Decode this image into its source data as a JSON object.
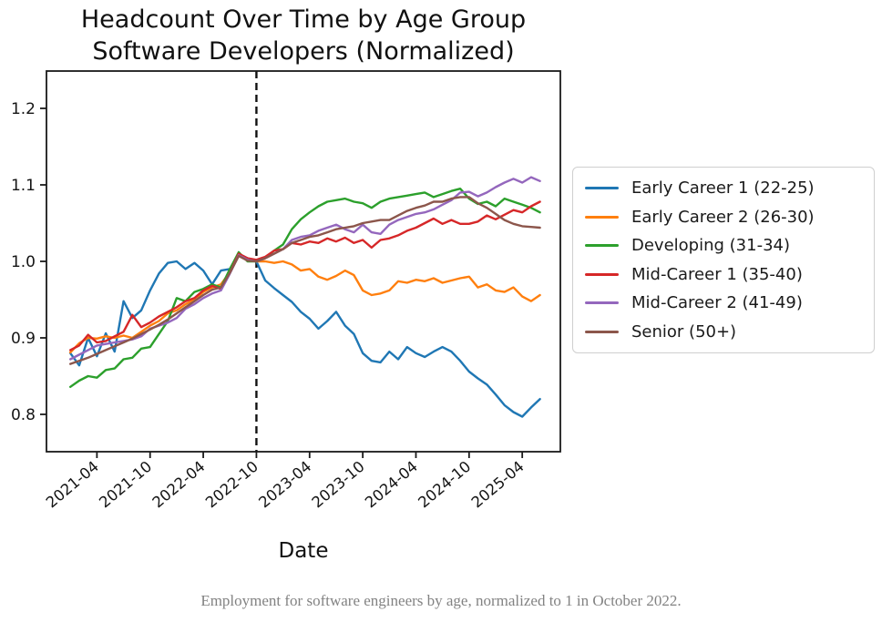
{
  "caption": "Employment for software engineers by age, normalized to 1 in October 2022.",
  "chart_data": {
    "type": "line",
    "title": "Headcount Over Time by Age Group",
    "subtitle": "Software Developers (Normalized)",
    "xlabel": "Date",
    "ylabel": "",
    "ylim": [
      0.75,
      1.25
    ],
    "yticks": [
      0.8,
      0.9,
      1.0,
      1.1,
      1.2
    ],
    "grid": false,
    "legend_position": "right",
    "vline": "2022-10",
    "vline_style": "dashed-black",
    "xticks": [
      "2021-04",
      "2021-10",
      "2022-04",
      "2022-10",
      "2023-04",
      "2023-10",
      "2024-04",
      "2024-10",
      "2025-04"
    ],
    "x": [
      "2021-01",
      "2021-02",
      "2021-03",
      "2021-04",
      "2021-05",
      "2021-06",
      "2021-07",
      "2021-08",
      "2021-09",
      "2021-10",
      "2021-11",
      "2021-12",
      "2022-01",
      "2022-02",
      "2022-03",
      "2022-04",
      "2022-05",
      "2022-06",
      "2022-07",
      "2022-08",
      "2022-09",
      "2022-10",
      "2022-11",
      "2022-12",
      "2023-01",
      "2023-02",
      "2023-03",
      "2023-04",
      "2023-05",
      "2023-06",
      "2023-07",
      "2023-08",
      "2023-09",
      "2023-10",
      "2023-11",
      "2023-12",
      "2024-01",
      "2024-02",
      "2024-03",
      "2024-04",
      "2024-05",
      "2024-06",
      "2024-07",
      "2024-08",
      "2024-09",
      "2024-10",
      "2024-11",
      "2024-12",
      "2025-01",
      "2025-02",
      "2025-03",
      "2025-04",
      "2025-05",
      "2025-06"
    ],
    "series": [
      {
        "name": "Early Career 1 (22-25)",
        "color": "#1f77b4",
        "values": [
          0.88,
          0.864,
          0.9,
          0.876,
          0.906,
          0.882,
          0.948,
          0.926,
          0.936,
          0.962,
          0.984,
          0.998,
          1.0,
          0.99,
          0.998,
          0.988,
          0.97,
          0.988,
          0.99,
          1.01,
          1.004,
          1.0,
          0.975,
          0.965,
          0.956,
          0.947,
          0.934,
          0.925,
          0.912,
          0.922,
          0.934,
          0.916,
          0.905,
          0.88,
          0.87,
          0.868,
          0.882,
          0.872,
          0.888,
          0.88,
          0.875,
          0.882,
          0.888,
          0.882,
          0.87,
          0.856,
          0.847,
          0.839,
          0.826,
          0.812,
          0.803,
          0.797,
          0.809,
          0.82
        ]
      },
      {
        "name": "Early Career 2 (26-30)",
        "color": "#ff7f0e",
        "values": [
          0.881,
          0.893,
          0.9,
          0.899,
          0.902,
          0.9,
          0.903,
          0.9,
          0.908,
          0.916,
          0.922,
          0.932,
          0.936,
          0.944,
          0.95,
          0.96,
          0.966,
          0.97,
          0.986,
          1.01,
          1.002,
          1.0,
          1.0,
          0.998,
          1.0,
          0.996,
          0.988,
          0.99,
          0.98,
          0.976,
          0.981,
          0.988,
          0.982,
          0.962,
          0.956,
          0.958,
          0.962,
          0.974,
          0.972,
          0.976,
          0.974,
          0.978,
          0.972,
          0.975,
          0.978,
          0.98,
          0.966,
          0.97,
          0.962,
          0.96,
          0.966,
          0.954,
          0.948,
          0.956
        ]
      },
      {
        "name": "Developing (31-34)",
        "color": "#2ca02c",
        "values": [
          0.836,
          0.844,
          0.85,
          0.848,
          0.858,
          0.86,
          0.872,
          0.874,
          0.886,
          0.888,
          0.905,
          0.922,
          0.952,
          0.948,
          0.96,
          0.964,
          0.97,
          0.966,
          0.99,
          1.012,
          1.0,
          1.0,
          1.005,
          1.014,
          1.022,
          1.042,
          1.055,
          1.064,
          1.072,
          1.078,
          1.08,
          1.082,
          1.078,
          1.076,
          1.07,
          1.078,
          1.082,
          1.084,
          1.086,
          1.088,
          1.09,
          1.084,
          1.088,
          1.092,
          1.095,
          1.082,
          1.075,
          1.078,
          1.072,
          1.082,
          1.078,
          1.074,
          1.07,
          1.064
        ]
      },
      {
        "name": "Mid-Career 1 (35-40)",
        "color": "#d62728",
        "values": [
          0.884,
          0.89,
          0.904,
          0.894,
          0.896,
          0.902,
          0.908,
          0.93,
          0.914,
          0.92,
          0.928,
          0.934,
          0.94,
          0.948,
          0.952,
          0.962,
          0.968,
          0.964,
          0.985,
          1.01,
          1.004,
          1.002,
          1.006,
          1.014,
          1.016,
          1.024,
          1.022,
          1.026,
          1.024,
          1.03,
          1.026,
          1.031,
          1.024,
          1.028,
          1.018,
          1.028,
          1.03,
          1.034,
          1.04,
          1.044,
          1.05,
          1.056,
          1.049,
          1.054,
          1.049,
          1.049,
          1.052,
          1.06,
          1.055,
          1.061,
          1.067,
          1.064,
          1.072,
          1.078
        ]
      },
      {
        "name": "Mid-Career 2 (41-49)",
        "color": "#9467bd",
        "values": [
          0.872,
          0.878,
          0.884,
          0.89,
          0.892,
          0.894,
          0.896,
          0.898,
          0.902,
          0.912,
          0.916,
          0.92,
          0.926,
          0.938,
          0.944,
          0.952,
          0.958,
          0.962,
          0.984,
          1.008,
          1.002,
          1.0,
          1.004,
          1.01,
          1.016,
          1.028,
          1.032,
          1.034,
          1.04,
          1.044,
          1.048,
          1.042,
          1.038,
          1.048,
          1.038,
          1.036,
          1.048,
          1.054,
          1.058,
          1.062,
          1.064,
          1.068,
          1.074,
          1.08,
          1.09,
          1.091,
          1.085,
          1.09,
          1.097,
          1.103,
          1.108,
          1.103,
          1.11,
          1.105
        ]
      },
      {
        "name": "Senior (50+)",
        "color": "#8c564b",
        "values": [
          0.866,
          0.87,
          0.874,
          0.879,
          0.884,
          0.889,
          0.894,
          0.899,
          0.905,
          0.911,
          0.917,
          0.924,
          0.932,
          0.94,
          0.948,
          0.956,
          0.963,
          0.966,
          0.985,
          1.007,
          1.001,
          1.0,
          1.004,
          1.01,
          1.016,
          1.024,
          1.028,
          1.032,
          1.034,
          1.038,
          1.042,
          1.044,
          1.046,
          1.05,
          1.052,
          1.054,
          1.054,
          1.06,
          1.066,
          1.07,
          1.073,
          1.078,
          1.078,
          1.082,
          1.084,
          1.084,
          1.076,
          1.07,
          1.062,
          1.054,
          1.049,
          1.046,
          1.045,
          1.044
        ]
      }
    ]
  }
}
